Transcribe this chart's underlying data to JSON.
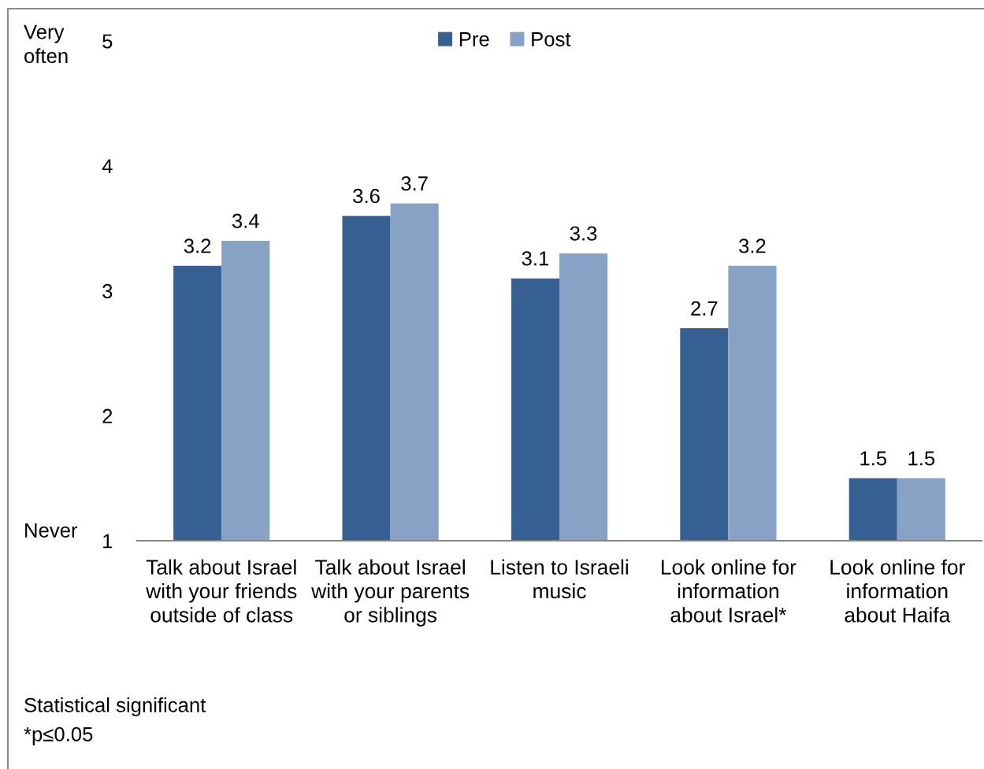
{
  "chart_data": {
    "type": "bar",
    "categories": [
      "Talk about Israel\nwith your friends\noutside of class",
      "Talk about Israel\nwith your parents\nor siblings",
      "Listen to Israeli\nmusic",
      "Look online for\ninformation\nabout Israel*",
      "Look online for\ninformation\nabout Haifa"
    ],
    "series": [
      {
        "name": "Pre",
        "color": "#376092",
        "values": [
          3.2,
          3.6,
          3.1,
          2.7,
          1.5
        ]
      },
      {
        "name": "Post",
        "color": "#88a2c6",
        "values": [
          3.4,
          3.7,
          3.3,
          3.2,
          1.5
        ]
      }
    ],
    "ylim": [
      1,
      5
    ],
    "yticks": [
      1,
      2,
      3,
      4,
      5
    ],
    "grid": false,
    "legend": "top",
    "data_labels": true,
    "annotations": [
      "Very\noften",
      "Never",
      "Statistical significant",
      "*p≤0.05"
    ]
  }
}
